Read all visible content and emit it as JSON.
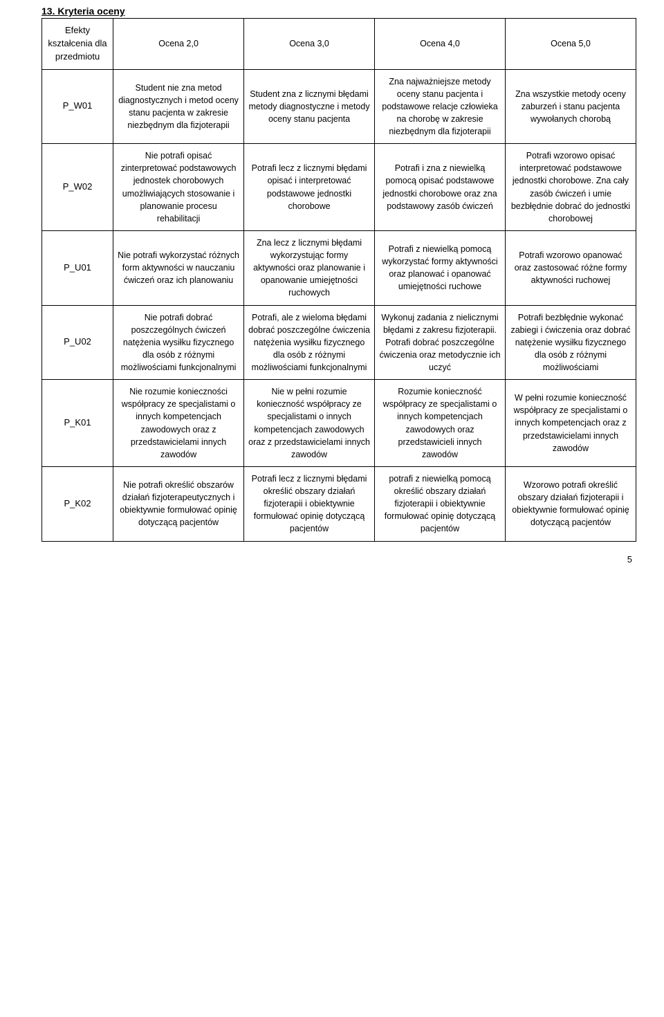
{
  "section_title": "13. Kryteria oceny",
  "page_number": "5",
  "table": {
    "columns": [
      "c0",
      "c1",
      "c2",
      "c3",
      "c4"
    ],
    "rows": [
      [
        "Efekty kształcenia dla przedmiotu",
        "Ocena 2,0",
        "Ocena 3,0",
        "Ocena 4,0",
        "Ocena 5,0"
      ],
      [
        "P_W01",
        "Student nie zna metod diagnostycznych i metod oceny  stanu pacjenta w zakresie niezbędnym dla fizjoterapii",
        "Student zna z licznymi błędami metody diagnostyczne i metody oceny stanu pacjenta",
        "Zna najważniejsze metody oceny stanu pacjenta i podstawowe relacje człowieka na chorobę w zakresie niezbędnym dla fizjoterapii",
        "Zna wszystkie metody oceny zaburzeń i stanu pacjenta wywołanych chorobą"
      ],
      [
        "P_W02",
        "Nie potrafi opisać zinterpretować podstawowych jednostek chorobowych umożliwiających stosowanie i planowanie procesu rehabilitacji",
        "Potrafi lecz z licznymi błędami opisać i interpretować podstawowe jednostki chorobowe",
        "Potrafi i zna z niewielką pomocą opisać podstawowe jednostki chorobowe oraz zna podstawowy zasób ćwiczeń",
        "Potrafi wzorowo opisać interpretować podstawowe jednostki chorobowe. Zna cały zasób ćwiczeń i umie bezbłędnie dobrać do jednostki chorobowej"
      ],
      [
        "P_U01",
        "Nie potrafi wykorzystać różnych form aktywności w nauczaniu ćwiczeń oraz ich planowaniu",
        "Zna lecz z licznymi błędami wykorzystując formy aktywności oraz planowanie i opanowanie umiejętności ruchowych",
        "Potrafi z niewielką pomocą wykorzystać formy aktywności oraz planować i opanować umiejętności ruchowe",
        "Potrafi wzorowo opanować oraz zastosować różne formy aktywności ruchowej"
      ],
      [
        "P_U02",
        "Nie potrafi dobrać poszczególnych ćwiczeń natężenia wysiłku fizycznego dla osób z różnymi możliwościami funkcjonalnymi",
        "Potrafi, ale z wieloma błędami dobrać poszczególne ćwiczenia natężenia wysiłku fizycznego dla osób z różnymi możliwościami funkcjonalnymi",
        "Wykonuj zadania z nielicznymi błędami z zakresu fizjoterapii. Potrafi dobrać poszczególne ćwiczenia oraz metodycznie ich uczyć",
        "Potrafi bezbłędnie wykonać zabiegi i ćwiczenia oraz dobrać natężenie wysiłku fizycznego dla osób z różnymi możliwościami"
      ],
      [
        "P_K01",
        "Nie rozumie konieczności współpracy ze specjalistami o innych kompetencjach zawodowych oraz z przedstawicielami innych zawodów",
        "Nie w pełni rozumie konieczność współpracy ze specjalistami o innych kompetencjach zawodowych oraz z przedstawicielami innych zawodów",
        "Rozumie konieczność współpracy ze specjalistami o innych kompetencjach zawodowych oraz przedstawicieli innych zawodów",
        "W pełni rozumie konieczność współpracy ze specjalistami o innych kompetencjach oraz z przedstawicielami innych zawodów"
      ],
      [
        "P_K02",
        "Nie potrafi określić obszarów działań fizjoterapeutycznych i obiektywnie formułować opinię dotyczącą pacjentów",
        "Potrafi lecz z licznymi błędami określić obszary działań fizjoterapii i obiektywnie formułować opinię dotyczącą pacjentów",
        "potrafi z niewielką pomocą określić obszary działań fizjoterapii i obiektywnie formułować opinię dotyczącą pacjentów",
        "Wzorowo potrafi określić obszary działań fizjoterapii i obiektywnie formułować opinię dotyczącą pacjentów"
      ]
    ]
  }
}
